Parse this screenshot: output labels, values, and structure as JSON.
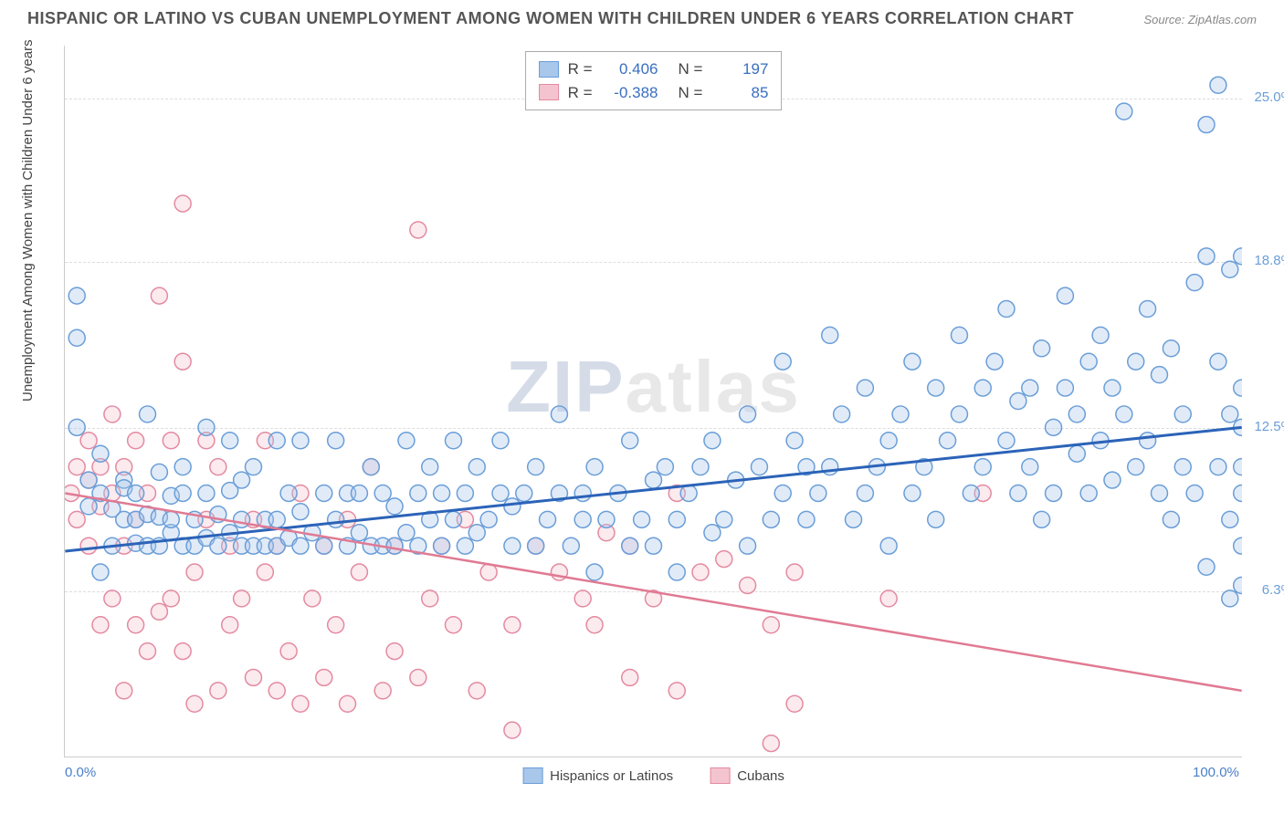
{
  "title": "HISPANIC OR LATINO VS CUBAN UNEMPLOYMENT AMONG WOMEN WITH CHILDREN UNDER 6 YEARS CORRELATION CHART",
  "source": "Source: ZipAtlas.com",
  "y_axis_label": "Unemployment Among Women with Children Under 6 years",
  "watermark_a": "ZIP",
  "watermark_b": "atlas",
  "x_ticks": [
    {
      "value": 0,
      "label": "0.0%"
    },
    {
      "value": 100,
      "label": "100.0%"
    }
  ],
  "y_ticks": [
    {
      "value": 6.3,
      "label": "6.3%"
    },
    {
      "value": 12.5,
      "label": "12.5%"
    },
    {
      "value": 18.8,
      "label": "18.8%"
    },
    {
      "value": 25.0,
      "label": "25.0%"
    }
  ],
  "xlim": [
    0,
    100
  ],
  "ylim": [
    0,
    27
  ],
  "grid_color": "#dddddd",
  "background_color": "#ffffff",
  "marker_radius": 9,
  "correlation": [
    {
      "color_fill": "#a9c6eb",
      "color_stroke": "#6a9ed8",
      "r": "0.406",
      "n": "197"
    },
    {
      "color_fill": "#f3c4cf",
      "color_stroke": "#e48aa0",
      "r": "-0.388",
      "n": "85"
    }
  ],
  "legend": [
    {
      "label": "Hispanics or Latinos",
      "color_fill": "#a9c6eb",
      "color_stroke": "#6a9ed8"
    },
    {
      "label": "Cubans",
      "color_fill": "#f3c4cf",
      "color_stroke": "#e48aa0"
    }
  ],
  "trend_lines": [
    {
      "series": "blue",
      "x1": 0,
      "y1": 7.8,
      "x2": 100,
      "y2": 12.5,
      "color": "#2b63b8",
      "width": 3
    },
    {
      "series": "pink",
      "x1": 0,
      "y1": 10.0,
      "x2": 100,
      "y2": 2.5,
      "color": "#e07a93",
      "width": 2.5
    }
  ],
  "series_blue": {
    "color_fill": "#a9c6eb",
    "color_stroke": "#6a9ed8",
    "points": [
      [
        1,
        12.5
      ],
      [
        1,
        15.9
      ],
      [
        1,
        17.5
      ],
      [
        2,
        10.5
      ],
      [
        2,
        9.5
      ],
      [
        3,
        7.0
      ],
      [
        3,
        10.0
      ],
      [
        3,
        11.5
      ],
      [
        4,
        8.0
      ],
      [
        4,
        9.4
      ],
      [
        5,
        10.5
      ],
      [
        5,
        9.0
      ],
      [
        5,
        10.2
      ],
      [
        6,
        8.1
      ],
      [
        6,
        9.0
      ],
      [
        6,
        10.0
      ],
      [
        7,
        8.0
      ],
      [
        7,
        9.2
      ],
      [
        7,
        13.0
      ],
      [
        8,
        8.0
      ],
      [
        8,
        9.1
      ],
      [
        8,
        10.8
      ],
      [
        9,
        8.5
      ],
      [
        9,
        9.0
      ],
      [
        9,
        9.9
      ],
      [
        10,
        8.0
      ],
      [
        10,
        10.0
      ],
      [
        10,
        11.0
      ],
      [
        11,
        8.0
      ],
      [
        11,
        9.0
      ],
      [
        12,
        8.3
      ],
      [
        12,
        10.0
      ],
      [
        12,
        12.5
      ],
      [
        13,
        8.0
      ],
      [
        13,
        9.2
      ],
      [
        14,
        8.5
      ],
      [
        14,
        10.1
      ],
      [
        14,
        12.0
      ],
      [
        15,
        8.0
      ],
      [
        15,
        9.0
      ],
      [
        15,
        10.5
      ],
      [
        16,
        8.0
      ],
      [
        16,
        11.0
      ],
      [
        17,
        8.0
      ],
      [
        17,
        9.0
      ],
      [
        18,
        8.0
      ],
      [
        18,
        9.0
      ],
      [
        18,
        12.0
      ],
      [
        19,
        8.3
      ],
      [
        19,
        10.0
      ],
      [
        20,
        8.0
      ],
      [
        20,
        9.3
      ],
      [
        20,
        12.0
      ],
      [
        21,
        8.5
      ],
      [
        22,
        10.0
      ],
      [
        22,
        8.0
      ],
      [
        23,
        9.0
      ],
      [
        23,
        12.0
      ],
      [
        24,
        10.0
      ],
      [
        24,
        8.0
      ],
      [
        25,
        8.5
      ],
      [
        25,
        10.0
      ],
      [
        26,
        8.0
      ],
      [
        26,
        11.0
      ],
      [
        27,
        8.0
      ],
      [
        27,
        10.0
      ],
      [
        28,
        9.5
      ],
      [
        28,
        8.0
      ],
      [
        29,
        12.0
      ],
      [
        29,
        8.5
      ],
      [
        30,
        10.0
      ],
      [
        30,
        8.0
      ],
      [
        31,
        9.0
      ],
      [
        31,
        11.0
      ],
      [
        32,
        8.0
      ],
      [
        32,
        10.0
      ],
      [
        33,
        9.0
      ],
      [
        33,
        12.0
      ],
      [
        34,
        10.0
      ],
      [
        34,
        8.0
      ],
      [
        35,
        11.0
      ],
      [
        35,
        8.5
      ],
      [
        36,
        9.0
      ],
      [
        37,
        10.0
      ],
      [
        37,
        12.0
      ],
      [
        38,
        8.0
      ],
      [
        38,
        9.5
      ],
      [
        39,
        10.0
      ],
      [
        40,
        8.0
      ],
      [
        40,
        11.0
      ],
      [
        41,
        9.0
      ],
      [
        42,
        10.0
      ],
      [
        42,
        13.0
      ],
      [
        43,
        8.0
      ],
      [
        44,
        10.0
      ],
      [
        44,
        9.0
      ],
      [
        45,
        7.0
      ],
      [
        45,
        11.0
      ],
      [
        46,
        9.0
      ],
      [
        47,
        10.0
      ],
      [
        48,
        8.0
      ],
      [
        48,
        12.0
      ],
      [
        49,
        9.0
      ],
      [
        50,
        10.5
      ],
      [
        50,
        8.0
      ],
      [
        51,
        11.0
      ],
      [
        52,
        9.0
      ],
      [
        52,
        7.0
      ],
      [
        53,
        10.0
      ],
      [
        54,
        11.0
      ],
      [
        55,
        12.0
      ],
      [
        55,
        8.5
      ],
      [
        56,
        9.0
      ],
      [
        57,
        10.5
      ],
      [
        58,
        13.0
      ],
      [
        58,
        8.0
      ],
      [
        59,
        11.0
      ],
      [
        60,
        9.0
      ],
      [
        61,
        15.0
      ],
      [
        61,
        10.0
      ],
      [
        62,
        12.0
      ],
      [
        63,
        11.0
      ],
      [
        63,
        9.0
      ],
      [
        64,
        10.0
      ],
      [
        65,
        16.0
      ],
      [
        65,
        11.0
      ],
      [
        66,
        13.0
      ],
      [
        67,
        9.0
      ],
      [
        68,
        10.0
      ],
      [
        68,
        14.0
      ],
      [
        69,
        11.0
      ],
      [
        70,
        12.0
      ],
      [
        70,
        8.0
      ],
      [
        71,
        13.0
      ],
      [
        72,
        10.0
      ],
      [
        72,
        15.0
      ],
      [
        73,
        11.0
      ],
      [
        74,
        9.0
      ],
      [
        74,
        14.0
      ],
      [
        75,
        12.0
      ],
      [
        76,
        13.0
      ],
      [
        76,
        16.0
      ],
      [
        77,
        10.0
      ],
      [
        78,
        14.0
      ],
      [
        78,
        11.0
      ],
      [
        79,
        15.0
      ],
      [
        80,
        12.0
      ],
      [
        80,
        17.0
      ],
      [
        81,
        10.0
      ],
      [
        81,
        13.5
      ],
      [
        82,
        14.0
      ],
      [
        82,
        11.0
      ],
      [
        83,
        15.5
      ],
      [
        83,
        9.0
      ],
      [
        84,
        10.0
      ],
      [
        84,
        12.5
      ],
      [
        85,
        17.5
      ],
      [
        85,
        14.0
      ],
      [
        86,
        11.5
      ],
      [
        86,
        13.0
      ],
      [
        87,
        15.0
      ],
      [
        87,
        10.0
      ],
      [
        88,
        12.0
      ],
      [
        88,
        16.0
      ],
      [
        89,
        14.0
      ],
      [
        89,
        10.5
      ],
      [
        90,
        24.5
      ],
      [
        90,
        13.0
      ],
      [
        91,
        15.0
      ],
      [
        91,
        11.0
      ],
      [
        92,
        12.0
      ],
      [
        92,
        17.0
      ],
      [
        93,
        10.0
      ],
      [
        93,
        14.5
      ],
      [
        94,
        15.5
      ],
      [
        94,
        9.0
      ],
      [
        95,
        11.0
      ],
      [
        95,
        13.0
      ],
      [
        96,
        18.0
      ],
      [
        96,
        10.0
      ],
      [
        97,
        19.0
      ],
      [
        97,
        7.2
      ],
      [
        97,
        24.0
      ],
      [
        98,
        15.0
      ],
      [
        98,
        11.0
      ],
      [
        98,
        25.5
      ],
      [
        99,
        18.5
      ],
      [
        99,
        13.0
      ],
      [
        99,
        6.0
      ],
      [
        99,
        9.0
      ],
      [
        100,
        10.0
      ],
      [
        100,
        12.5
      ],
      [
        100,
        14.0
      ],
      [
        100,
        8.0
      ],
      [
        100,
        6.5
      ],
      [
        100,
        11.0
      ],
      [
        100,
        19.0
      ]
    ]
  },
  "series_pink": {
    "color_fill": "#f3c4cf",
    "color_stroke": "#e48aa0",
    "points": [
      [
        0.5,
        10.0
      ],
      [
        1,
        11.0
      ],
      [
        1,
        9.0
      ],
      [
        2,
        12.0
      ],
      [
        2,
        8.0
      ],
      [
        2,
        10.5
      ],
      [
        3,
        9.5
      ],
      [
        3,
        11.0
      ],
      [
        3,
        5.0
      ],
      [
        4,
        10.0
      ],
      [
        4,
        13.0
      ],
      [
        4,
        6.0
      ],
      [
        5,
        11.0
      ],
      [
        5,
        8.0
      ],
      [
        5,
        2.5
      ],
      [
        6,
        5.0
      ],
      [
        6,
        9.0
      ],
      [
        6,
        12.0
      ],
      [
        7,
        4.0
      ],
      [
        7,
        10.0
      ],
      [
        8,
        5.5
      ],
      [
        8,
        17.5
      ],
      [
        9,
        12.0
      ],
      [
        9,
        6.0
      ],
      [
        10,
        15.0
      ],
      [
        10,
        4.0
      ],
      [
        10,
        21.0
      ],
      [
        11,
        7.0
      ],
      [
        11,
        2.0
      ],
      [
        12,
        12.0
      ],
      [
        12,
        9.0
      ],
      [
        13,
        11.0
      ],
      [
        13,
        2.5
      ],
      [
        14,
        8.0
      ],
      [
        14,
        5.0
      ],
      [
        15,
        6.0
      ],
      [
        16,
        9.0
      ],
      [
        16,
        3.0
      ],
      [
        17,
        7.0
      ],
      [
        17,
        12.0
      ],
      [
        18,
        2.5
      ],
      [
        18,
        8.0
      ],
      [
        19,
        4.0
      ],
      [
        20,
        10.0
      ],
      [
        20,
        2.0
      ],
      [
        21,
        6.0
      ],
      [
        22,
        8.0
      ],
      [
        22,
        3.0
      ],
      [
        23,
        5.0
      ],
      [
        24,
        9.0
      ],
      [
        24,
        2.0
      ],
      [
        25,
        7.0
      ],
      [
        26,
        11.0
      ],
      [
        27,
        2.5
      ],
      [
        28,
        8.0
      ],
      [
        28,
        4.0
      ],
      [
        30,
        3.0
      ],
      [
        30,
        20.0
      ],
      [
        31,
        6.0
      ],
      [
        32,
        8.0
      ],
      [
        33,
        5.0
      ],
      [
        34,
        9.0
      ],
      [
        35,
        2.5
      ],
      [
        36,
        7.0
      ],
      [
        38,
        5.0
      ],
      [
        38,
        1.0
      ],
      [
        40,
        8.0
      ],
      [
        42,
        7.0
      ],
      [
        44,
        6.0
      ],
      [
        45,
        5.0
      ],
      [
        46,
        8.5
      ],
      [
        48,
        3.0
      ],
      [
        48,
        8.0
      ],
      [
        50,
        6.0
      ],
      [
        52,
        10.0
      ],
      [
        52,
        2.5
      ],
      [
        54,
        7.0
      ],
      [
        56,
        7.5
      ],
      [
        58,
        6.5
      ],
      [
        60,
        5.0
      ],
      [
        60,
        0.5
      ],
      [
        62,
        2.0
      ],
      [
        62,
        7.0
      ],
      [
        70,
        6.0
      ],
      [
        78,
        10.0
      ]
    ]
  }
}
